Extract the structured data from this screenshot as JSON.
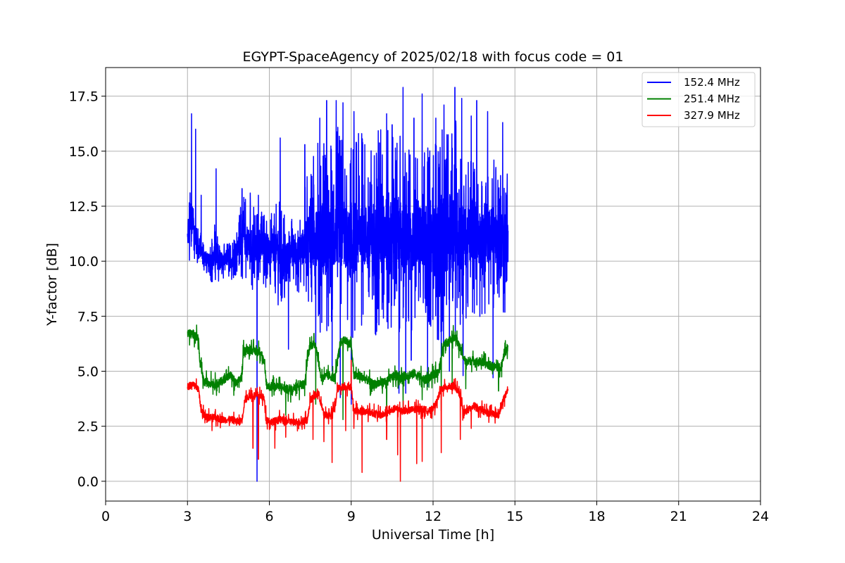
{
  "chart_data": {
    "type": "line",
    "title": "EGYPT-SpaceAgency of 2025/02/18 with focus code = 01",
    "xlabel": "Universal Time [h]",
    "ylabel": "Y-factor [dB]",
    "xlim": [
      0,
      24
    ],
    "ylim": [
      -0.9,
      18.8
    ],
    "xticks": [
      0,
      3,
      6,
      9,
      12,
      15,
      18,
      21,
      24
    ],
    "xtick_labels": [
      "0",
      "3",
      "6",
      "9",
      "12",
      "15",
      "18",
      "21",
      "24"
    ],
    "yticks": [
      0.0,
      2.5,
      5.0,
      7.5,
      10.0,
      12.5,
      15.0,
      17.5
    ],
    "ytick_labels": [
      "0.0",
      "2.5",
      "5.0",
      "7.5",
      "10.0",
      "12.5",
      "15.0",
      "17.5"
    ],
    "grid": true,
    "legend_position": "top-right",
    "series": [
      {
        "name": "152.4 MHz",
        "color": "#0000ff",
        "x": [
          3.0,
          3.1,
          3.2,
          3.3,
          3.4,
          3.6,
          3.8,
          4.0,
          4.2,
          4.4,
          4.6,
          4.8,
          5.0,
          5.2,
          5.4,
          5.6,
          5.8,
          6.0,
          6.2,
          6.4,
          6.6,
          6.8,
          7.0,
          7.2,
          7.4,
          7.6,
          7.8,
          8.0,
          8.2,
          8.4,
          8.6,
          8.8,
          9.0,
          9.2,
          9.4,
          9.6,
          9.8,
          10.0,
          10.2,
          10.4,
          10.6,
          10.8,
          11.0,
          11.2,
          11.4,
          11.6,
          11.8,
          12.0,
          12.2,
          12.4,
          12.6,
          12.8,
          13.0,
          13.2,
          13.4,
          13.6,
          13.8,
          14.0,
          14.2,
          14.4,
          14.6,
          14.75
        ],
        "y": [
          11.0,
          11.6,
          12.0,
          11.0,
          10.6,
          10.3,
          10.0,
          10.2,
          9.9,
          10.1,
          10.0,
          10.4,
          11.2,
          10.8,
          10.6,
          10.5,
          10.8,
          10.3,
          10.6,
          10.2,
          10.0,
          10.5,
          10.4,
          10.6,
          11.2,
          11.0,
          11.5,
          11.0,
          10.8,
          11.3,
          11.6,
          11.0,
          10.7,
          11.2,
          11.5,
          11.0,
          10.8,
          11.2,
          11.4,
          11.0,
          11.6,
          11.2,
          11.0,
          10.8,
          11.3,
          11.1,
          11.2,
          10.9,
          11.0,
          11.4,
          11.2,
          11.6,
          11.3,
          11.0,
          11.2,
          11.5,
          10.9,
          11.1,
          11.3,
          10.8,
          11.0,
          11.2
        ],
        "noise_amplitude": [
          0.8,
          2.5,
          1.5,
          1.2,
          0.9,
          0.8,
          0.7,
          1.6,
          0.8,
          0.8,
          0.9,
          1.0,
          2.0,
          2.2,
          2.2,
          1.6,
          2.0,
          1.6,
          2.0,
          2.6,
          2.2,
          1.5,
          1.8,
          2.2,
          2.8,
          4.0,
          4.5,
          4.8,
          4.5,
          4.5,
          4.8,
          4.0,
          4.5,
          4.5,
          4.5,
          4.0,
          4.5,
          5.0,
          5.0,
          4.8,
          4.5,
          4.5,
          4.2,
          4.2,
          4.0,
          4.0,
          4.0,
          4.5,
          4.8,
          5.5,
          4.5,
          5.5,
          4.5,
          3.8,
          3.8,
          4.0,
          3.5,
          3.5,
          3.5,
          3.5,
          3.5,
          3.5
        ],
        "dips": [
          [
            5.0,
            6.0
          ],
          [
            5.3,
            1.1
          ],
          [
            5.55,
            0.0
          ],
          [
            6.4,
            6.0
          ],
          [
            6.7,
            6.0
          ],
          [
            7.7,
            5.0
          ],
          [
            8.3,
            5.0
          ],
          [
            8.6,
            3.8
          ],
          [
            9.0,
            3.5
          ],
          [
            9.5,
            4.5
          ],
          [
            10.3,
            4.6
          ],
          [
            10.5,
            4.8
          ],
          [
            10.75,
            4.0
          ],
          [
            11.0,
            4.0
          ],
          [
            11.2,
            5.5
          ],
          [
            11.8,
            4.3
          ],
          [
            12.3,
            4.5
          ],
          [
            12.6,
            5.0
          ],
          [
            13.1,
            4.8
          ],
          [
            13.6,
            4.6
          ],
          [
            14.2,
            4.7
          ],
          [
            14.55,
            1.6
          ]
        ],
        "spikes": [
          [
            3.15,
            16.7
          ],
          [
            3.3,
            16.0
          ],
          [
            3.5,
            13.0
          ],
          [
            4.05,
            14.2
          ],
          [
            5.0,
            13.3
          ],
          [
            5.3,
            13.1
          ],
          [
            5.6,
            13.0
          ],
          [
            6.4,
            15.6
          ],
          [
            7.3,
            15.3
          ],
          [
            7.85,
            16.5
          ],
          [
            8.1,
            17.3
          ],
          [
            8.45,
            17.3
          ],
          [
            8.7,
            17.2
          ],
          [
            9.1,
            16.8
          ],
          [
            9.5,
            15.3
          ],
          [
            10.3,
            16.7
          ],
          [
            10.5,
            16.2
          ],
          [
            10.9,
            17.9
          ],
          [
            11.3,
            16.5
          ],
          [
            11.6,
            17.6
          ],
          [
            12.1,
            16.5
          ],
          [
            12.4,
            17.1
          ],
          [
            12.8,
            17.9
          ],
          [
            13.05,
            17.4
          ],
          [
            13.4,
            16.6
          ],
          [
            13.6,
            17.3
          ],
          [
            14.0,
            16.8
          ],
          [
            14.55,
            16.3
          ]
        ]
      },
      {
        "name": "251.4 MHz",
        "color": "#008000",
        "x": [
          3.0,
          3.2,
          3.4,
          3.45,
          3.6,
          3.8,
          4.0,
          4.2,
          4.4,
          4.6,
          4.8,
          5.0,
          5.05,
          5.3,
          5.5,
          5.7,
          5.8,
          5.9,
          6.0,
          6.4,
          6.8,
          7.0,
          7.3,
          7.4,
          7.5,
          7.7,
          7.9,
          8.2,
          8.4,
          8.6,
          8.8,
          9.0,
          9.1,
          9.3,
          9.6,
          9.8,
          10.2,
          10.6,
          10.8,
          11.0,
          11.3,
          11.7,
          12.0,
          12.2,
          12.4,
          12.6,
          12.8,
          13.0,
          13.2,
          13.4,
          13.8,
          14.2,
          14.5,
          14.6,
          14.75
        ],
        "y": [
          6.7,
          6.7,
          6.5,
          5.4,
          4.5,
          4.5,
          4.4,
          4.5,
          4.7,
          4.8,
          4.4,
          4.8,
          5.9,
          6.0,
          5.9,
          5.9,
          5.4,
          4.4,
          4.3,
          4.3,
          4.1,
          4.4,
          4.4,
          5.6,
          6.2,
          6.2,
          4.7,
          4.8,
          4.7,
          6.3,
          6.4,
          6.2,
          4.8,
          4.8,
          4.6,
          4.4,
          4.5,
          4.8,
          4.7,
          4.8,
          4.9,
          4.6,
          4.8,
          5.0,
          6.2,
          6.4,
          6.6,
          6.0,
          5.4,
          5.5,
          5.4,
          5.2,
          5.2,
          5.8,
          6.1
        ],
        "noise_amplitude": 0.25,
        "dips": [
          [
            4.7,
            3.9
          ],
          [
            6.6,
            3.0
          ],
          [
            7.1,
            3.7
          ],
          [
            7.7,
            3.5
          ],
          [
            8.7,
            2.8
          ],
          [
            9.7,
            3.9
          ],
          [
            10.3,
            3.3
          ],
          [
            10.9,
            3.3
          ],
          [
            11.6,
            3.7
          ],
          [
            12.3,
            3.2
          ],
          [
            12.7,
            4.3
          ],
          [
            13.2,
            4.2
          ],
          [
            14.4,
            4.1
          ]
        ],
        "spikes": []
      },
      {
        "name": "327.9 MHz",
        "color": "#ff0000",
        "x": [
          3.0,
          3.2,
          3.4,
          3.5,
          3.7,
          4.0,
          4.3,
          4.6,
          4.9,
          5.0,
          5.1,
          5.3,
          5.6,
          5.8,
          5.9,
          6.1,
          6.4,
          6.8,
          7.2,
          7.4,
          7.5,
          7.8,
          8.0,
          8.2,
          8.4,
          8.5,
          8.7,
          9.0,
          9.1,
          9.4,
          9.8,
          10.1,
          10.3,
          10.6,
          11.0,
          11.5,
          11.9,
          12.1,
          12.3,
          12.5,
          12.8,
          13.0,
          13.1,
          13.5,
          14.0,
          14.4,
          14.6,
          14.75
        ],
        "y": [
          4.3,
          4.4,
          4.2,
          3.2,
          2.9,
          2.9,
          2.8,
          2.8,
          2.7,
          2.8,
          3.7,
          3.9,
          3.9,
          3.8,
          2.8,
          2.7,
          2.8,
          2.7,
          2.7,
          2.8,
          3.7,
          4.0,
          3.0,
          3.0,
          3.3,
          4.2,
          4.3,
          4.3,
          3.2,
          3.2,
          3.1,
          3.0,
          3.1,
          3.3,
          3.2,
          3.3,
          3.2,
          3.5,
          4.2,
          4.3,
          4.3,
          3.9,
          3.1,
          3.4,
          3.1,
          3.0,
          3.8,
          4.1
        ],
        "noise_amplitude": 0.2,
        "dips": [
          [
            3.9,
            2.3
          ],
          [
            5.6,
            1.0
          ],
          [
            5.4,
            1.5
          ],
          [
            6.2,
            1.5
          ],
          [
            6.6,
            2.0
          ],
          [
            7.6,
            1.9
          ],
          [
            8.0,
            1.8
          ],
          [
            8.3,
            0.85
          ],
          [
            8.8,
            2.3
          ],
          [
            9.1,
            2.4
          ],
          [
            9.4,
            0.4
          ],
          [
            10.3,
            1.9
          ],
          [
            10.8,
            0.0
          ],
          [
            10.7,
            1.2
          ],
          [
            11.4,
            0.8
          ],
          [
            11.6,
            0.9
          ],
          [
            12.3,
            1.3
          ],
          [
            13.0,
            1.9
          ],
          [
            13.4,
            2.4
          ]
        ],
        "spikes": [
          [
            9.0,
            5.5
          ]
        ]
      }
    ]
  }
}
